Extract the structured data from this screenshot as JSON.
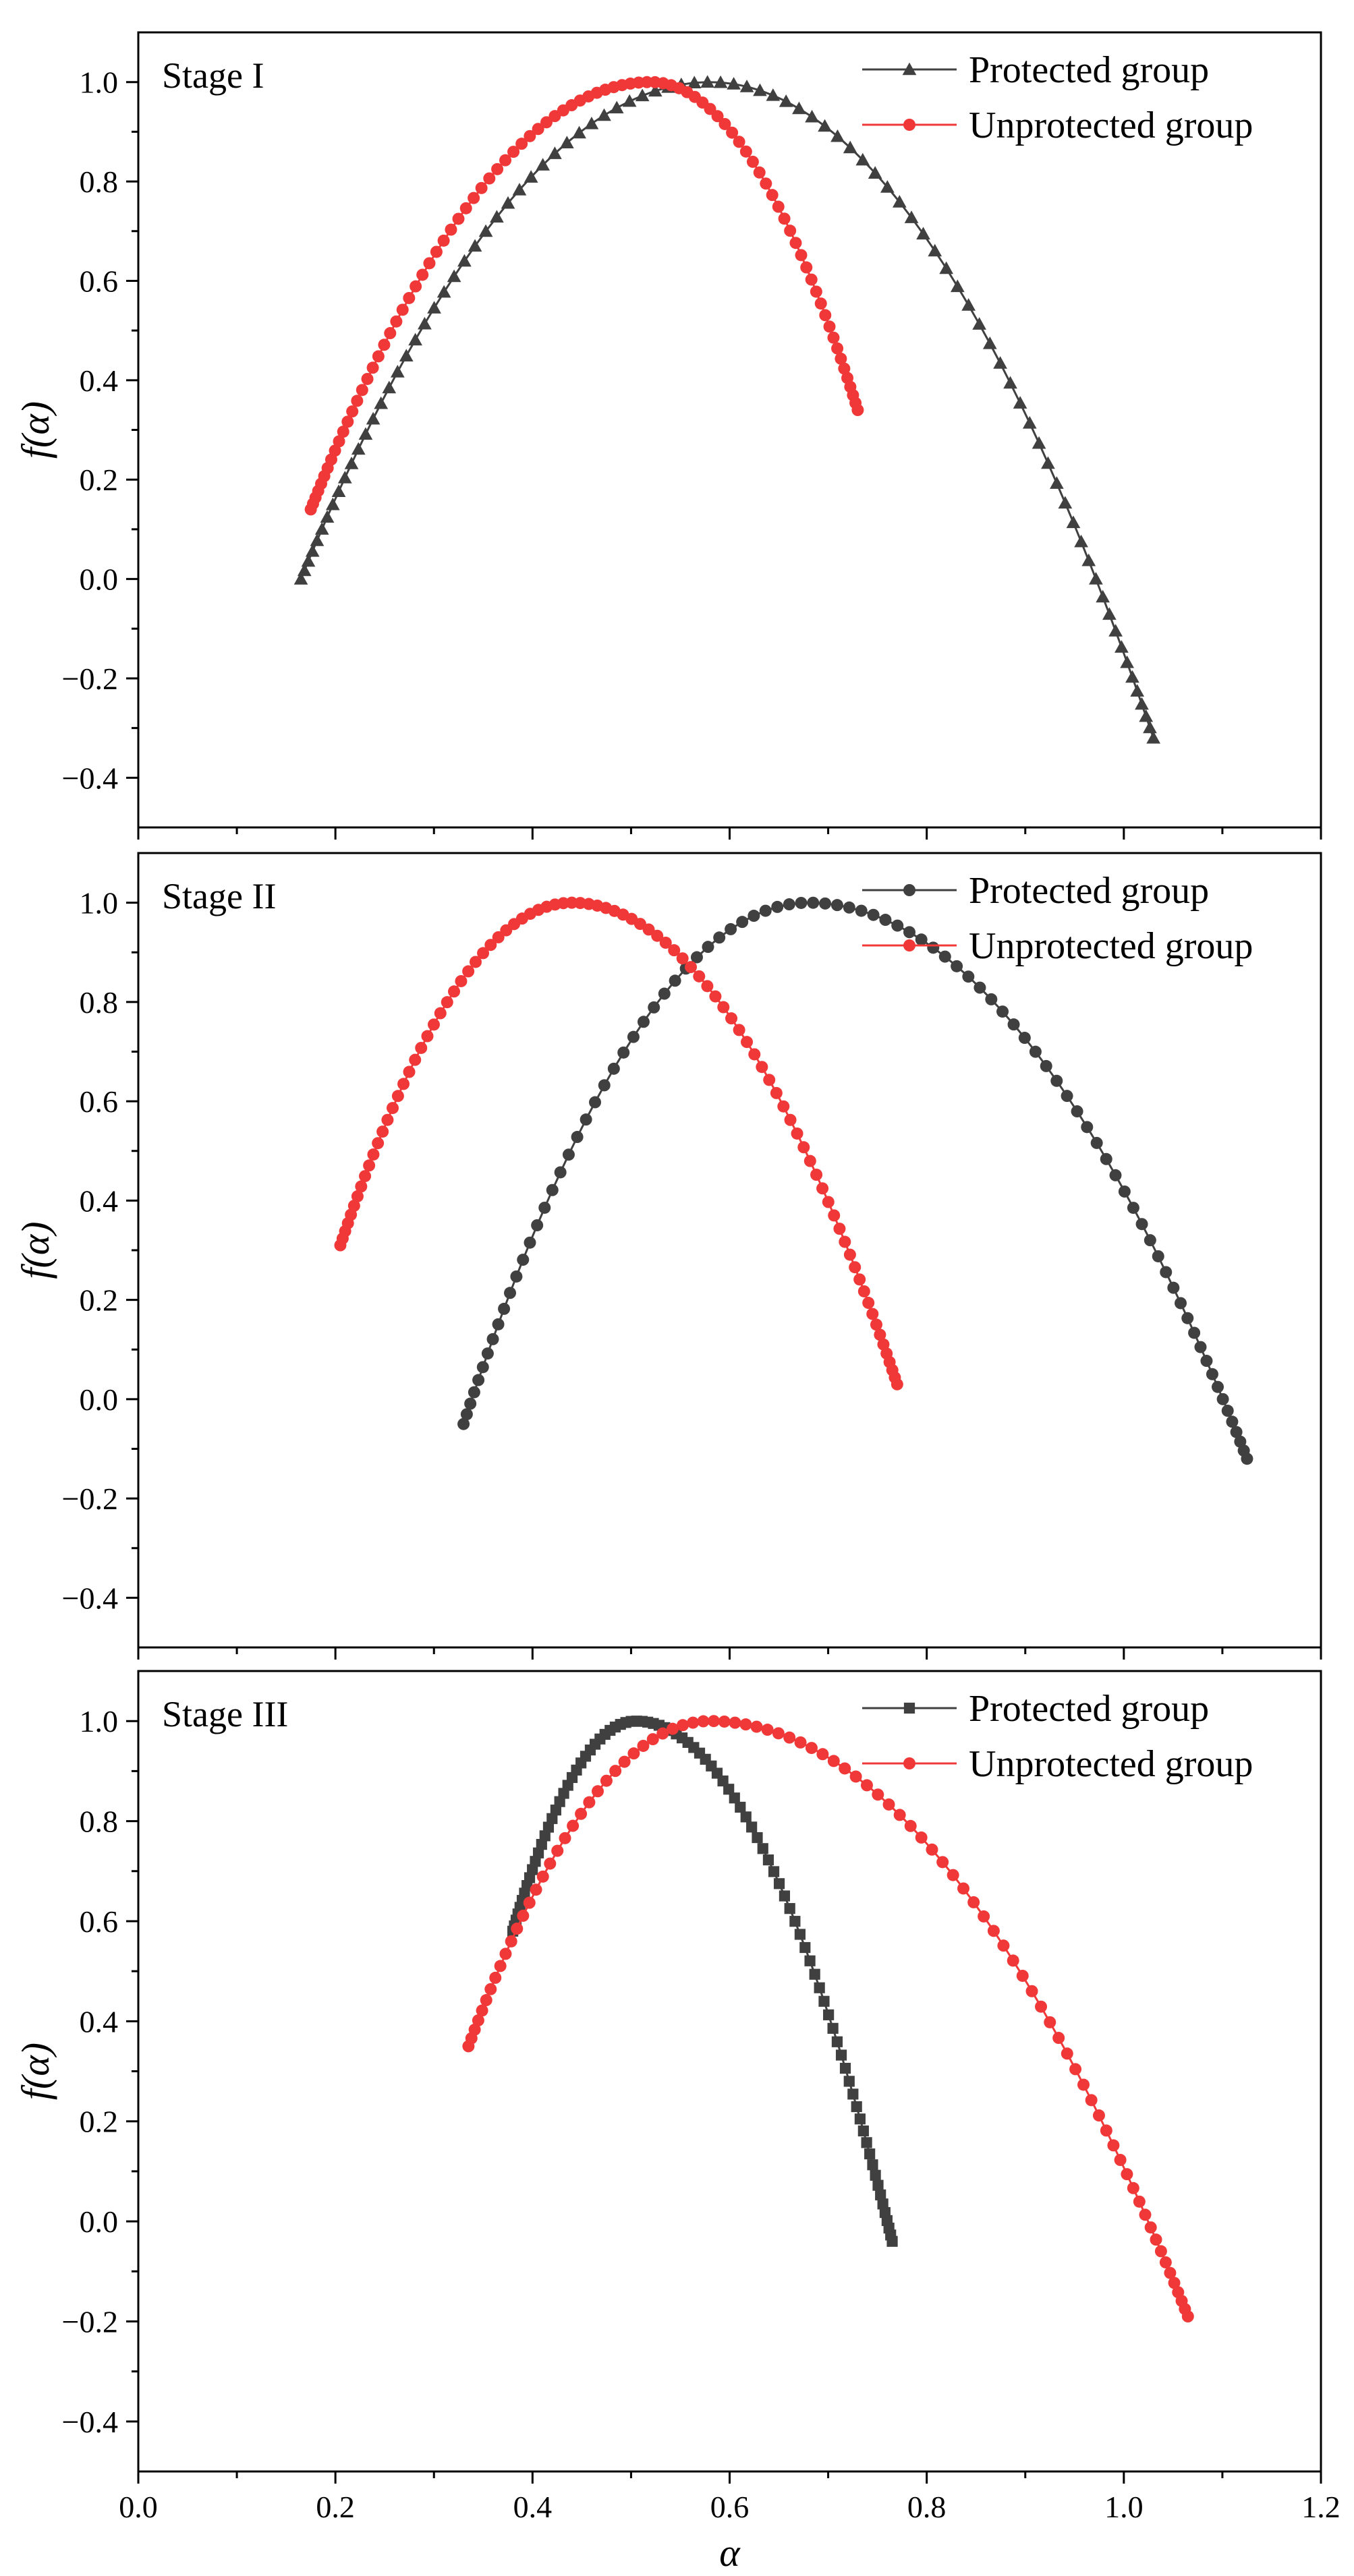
{
  "colors": {
    "protected": "#404040",
    "unprotected": "#f03838",
    "axis": "#000000"
  },
  "chart_data": [
    {
      "type": "line",
      "title": "Stage I",
      "xlabel": "α",
      "ylabel": "f(α)",
      "xlim": [
        0.0,
        1.2
      ],
      "ylim": [
        -0.5,
        1.1
      ],
      "xticks": [
        0.0,
        0.2,
        0.4,
        0.6,
        0.8,
        1.0,
        1.2
      ],
      "yticks": [
        -0.4,
        -0.2,
        0.0,
        0.2,
        0.4,
        0.6,
        0.8,
        1.0
      ],
      "show_x_tick_labels": false,
      "show_x_title": false,
      "legend_position": "top-right",
      "series": [
        {
          "name": "Protected group",
          "marker": "triangle",
          "color": "#404040",
          "alpha_min": 0.165,
          "f_min": 0.0,
          "alpha_peak": 0.58,
          "alpha_max": 1.03,
          "f_max": -0.32,
          "count": 90
        },
        {
          "name": "Unprotected group",
          "marker": "circle",
          "color": "#f03838",
          "alpha_min": 0.175,
          "f_min": 0.14,
          "alpha_peak": 0.52,
          "alpha_max": 0.73,
          "f_max": 0.34,
          "count": 90
        }
      ]
    },
    {
      "type": "line",
      "title": "Stage II",
      "xlabel": "α",
      "ylabel": "f(α)",
      "xlim": [
        0.0,
        1.2
      ],
      "ylim": [
        -0.5,
        1.1
      ],
      "xticks": [
        0.0,
        0.2,
        0.4,
        0.6,
        0.8,
        1.0,
        1.2
      ],
      "yticks": [
        -0.4,
        -0.2,
        0.0,
        0.2,
        0.4,
        0.6,
        0.8,
        1.0
      ],
      "show_x_tick_labels": false,
      "show_x_title": false,
      "legend_position": "top-right",
      "series": [
        {
          "name": "Protected group",
          "marker": "circle",
          "color": "#404040",
          "alpha_min": 0.33,
          "f_min": -0.05,
          "alpha_peak": 0.68,
          "alpha_max": 1.125,
          "f_max": -0.12,
          "count": 90
        },
        {
          "name": "Unprotected group",
          "marker": "circle",
          "color": "#f03838",
          "alpha_min": 0.205,
          "f_min": 0.31,
          "alpha_peak": 0.44,
          "alpha_max": 0.77,
          "f_max": 0.03,
          "count": 90
        }
      ]
    },
    {
      "type": "line",
      "title": "Stage III",
      "xlabel": "α",
      "ylabel": "f(α)",
      "xlim": [
        0.0,
        1.2
      ],
      "ylim": [
        -0.5,
        1.1
      ],
      "xticks": [
        0.0,
        0.2,
        0.4,
        0.6,
        0.8,
        1.0,
        1.2
      ],
      "yticks": [
        -0.4,
        -0.2,
        0.0,
        0.2,
        0.4,
        0.6,
        0.8,
        1.0
      ],
      "show_x_tick_labels": true,
      "show_x_title": true,
      "legend_position": "top-right",
      "series": [
        {
          "name": "Protected group",
          "marker": "square",
          "color": "#404040",
          "alpha_min": 0.38,
          "f_min": 0.58,
          "alpha_peak": 0.505,
          "alpha_max": 0.765,
          "f_max": -0.04,
          "count": 90
        },
        {
          "name": "Unprotected group",
          "marker": "circle",
          "color": "#f03838",
          "alpha_min": 0.335,
          "f_min": 0.35,
          "alpha_peak": 0.58,
          "alpha_max": 1.065,
          "f_max": -0.19,
          "count": 90
        }
      ]
    }
  ]
}
